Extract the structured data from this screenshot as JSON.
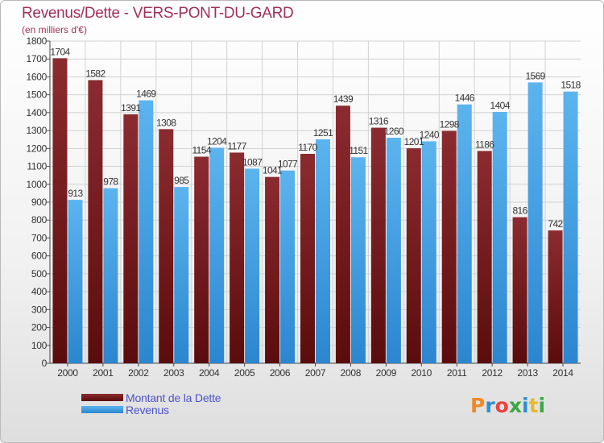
{
  "title": "Revenus/Dette - VERS-PONT-DU-GARD",
  "subtitle": "(en milliers d'€)",
  "logo": {
    "text": "Proxiti",
    "letter_colors": [
      "#f08a24",
      "#2f8fd3",
      "#e8453c",
      "#3aa845",
      "#2f8fd3",
      "#e8b82d",
      "#3aa845"
    ]
  },
  "colors": {
    "dette_top": "#8b2b30",
    "dette_bottom": "#5a0c0c",
    "revenus_top": "#5cb4ee",
    "revenus_bottom": "#2b86cf"
  },
  "chart_data": {
    "type": "bar",
    "title": "Revenus/Dette - VERS-PONT-DU-GARD",
    "subtitle": "(en milliers d'€)",
    "categories": [
      "2000",
      "2001",
      "2002",
      "2003",
      "2004",
      "2005",
      "2006",
      "2007",
      "2008",
      "2009",
      "2010",
      "2011",
      "2012",
      "2013",
      "2014"
    ],
    "series": [
      {
        "name": "Montant de la Dette",
        "values": [
          1704,
          1582,
          1391,
          1308,
          1154,
          1177,
          1041,
          1170,
          1439,
          1316,
          1201,
          1298,
          1186,
          816,
          742
        ]
      },
      {
        "name": "Revenus",
        "values": [
          913,
          978,
          1469,
          985,
          1204,
          1087,
          1077,
          1251,
          1151,
          1260,
          1240,
          1446,
          1404,
          1569,
          1518
        ]
      }
    ],
    "ylim": [
      0,
      1800
    ],
    "ytick_step": 100,
    "grid": true,
    "legend_position": "bottom-left"
  }
}
